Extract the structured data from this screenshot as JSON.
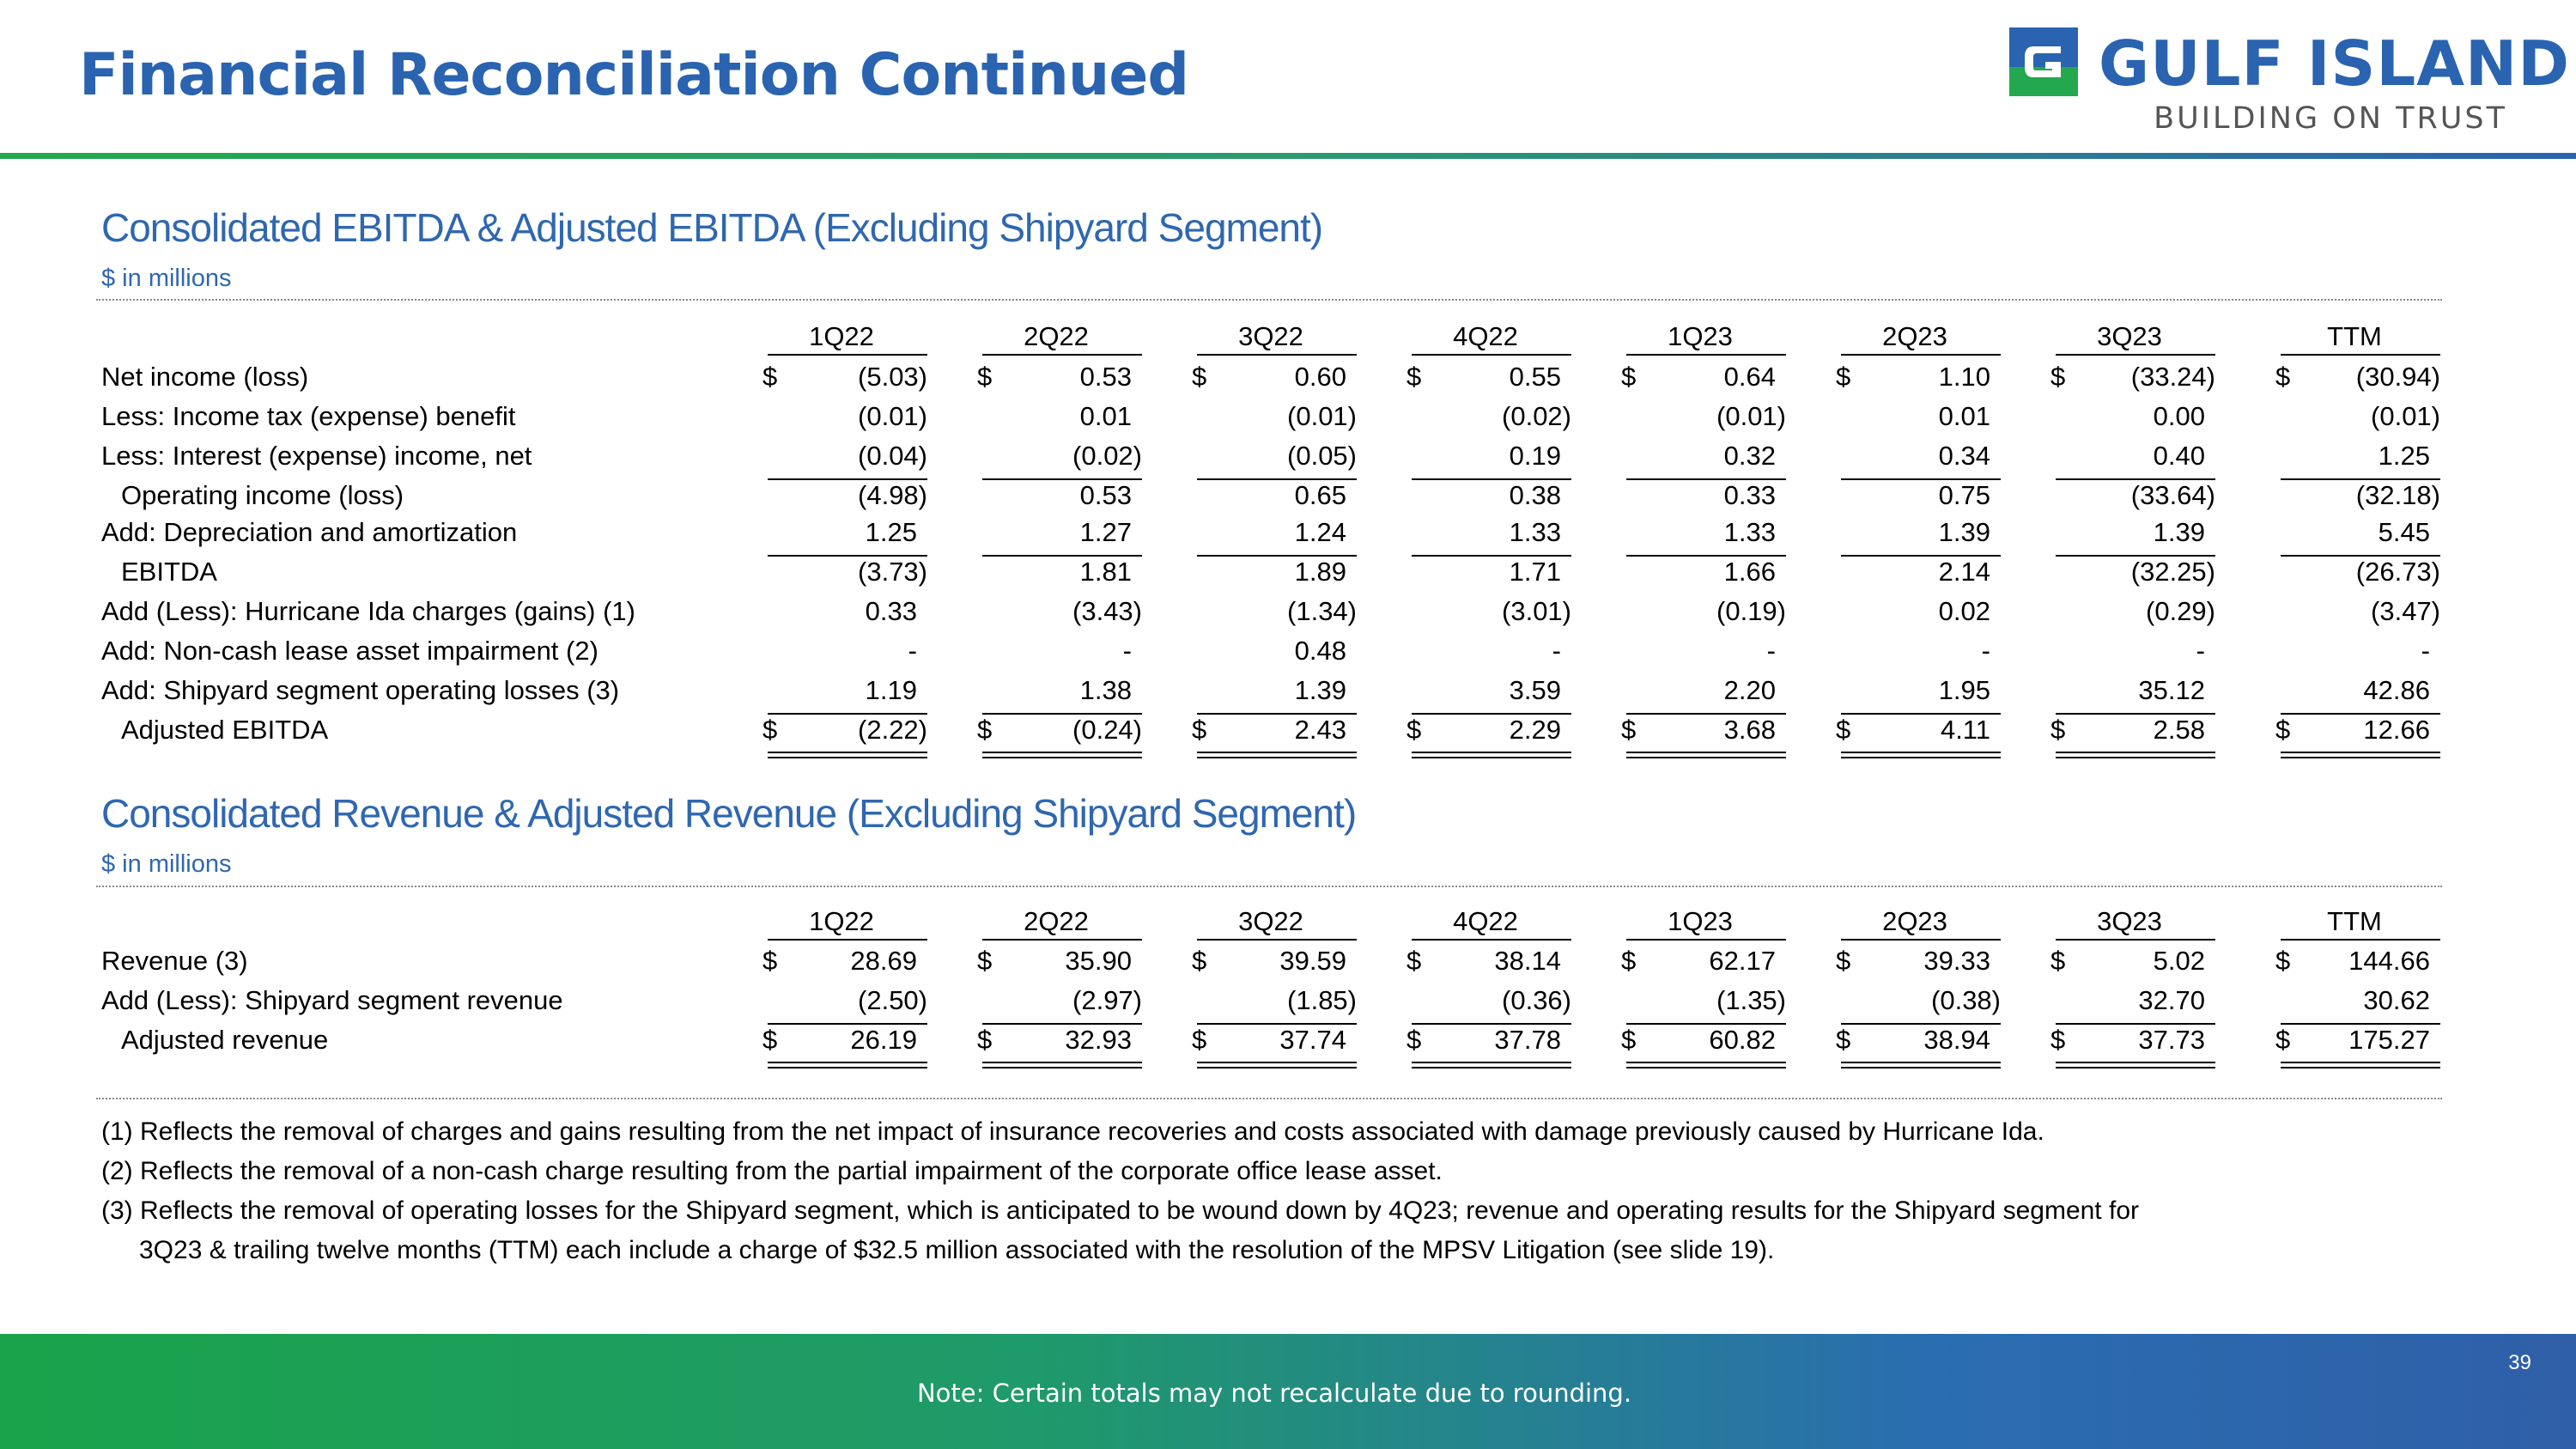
{
  "header": {
    "title": "Financial Reconciliation Continued",
    "logo_name": "GULF ISLAND",
    "logo_tagline": "BUILDING ON TRUST",
    "logo_icon": "gulf-island-g-icon",
    "colors": {
      "title_blue": "#2a63b0",
      "brand_green": "#23a84f",
      "section_blue": "#2f67b0"
    }
  },
  "ebitda": {
    "title": "Consolidated EBITDA & Adjusted EBITDA (Excluding Shipyard Segment)",
    "unit": "$ in millions",
    "columns": [
      "1Q22",
      "2Q22",
      "3Q22",
      "4Q22",
      "1Q23",
      "2Q23",
      "3Q23",
      "TTM"
    ],
    "rows": [
      {
        "label": "Net income (loss)",
        "values": [
          "(5.03)",
          "0.53",
          "0.60",
          "0.55",
          "0.64",
          "1.10",
          "(33.24)",
          "(30.94)"
        ],
        "dollar": true
      },
      {
        "label": "Less: Income tax (expense) benefit",
        "values": [
          "(0.01)",
          "0.01",
          "(0.01)",
          "(0.02)",
          "(0.01)",
          "0.01",
          "0.00",
          "(0.01)"
        ]
      },
      {
        "label": "Less: Interest (expense) income, net",
        "values": [
          "(0.04)",
          "(0.02)",
          "(0.05)",
          "0.19",
          "0.32",
          "0.34",
          "0.40",
          "1.25"
        ]
      },
      {
        "label": "Operating income (loss)",
        "values": [
          "(4.98)",
          "0.53",
          "0.65",
          "0.38",
          "0.33",
          "0.75",
          "(33.64)",
          "(32.18)"
        ],
        "indent": true
      },
      {
        "label": "Add: Depreciation and amortization",
        "values": [
          "1.25",
          "1.27",
          "1.24",
          "1.33",
          "1.33",
          "1.39",
          "1.39",
          "5.45"
        ]
      },
      {
        "label": "EBITDA",
        "values": [
          "(3.73)",
          "1.81",
          "1.89",
          "1.71",
          "1.66",
          "2.14",
          "(32.25)",
          "(26.73)"
        ],
        "indent": true
      },
      {
        "label": "Add (Less): Hurricane Ida charges (gains) (1)",
        "values": [
          "0.33",
          "(3.43)",
          "(1.34)",
          "(3.01)",
          "(0.19)",
          "0.02",
          "(0.29)",
          "(3.47)"
        ]
      },
      {
        "label": "Add: Non-cash lease asset impairment (2)",
        "values": [
          "-",
          "-",
          "0.48",
          "-",
          "-",
          "-",
          "-",
          "-"
        ]
      },
      {
        "label": "Add: Shipyard segment operating losses (3)",
        "values": [
          "1.19",
          "1.38",
          "1.39",
          "3.59",
          "2.20",
          "1.95",
          "35.12",
          "42.86"
        ]
      },
      {
        "label": "Adjusted EBITDA",
        "values": [
          "(2.22)",
          "(0.24)",
          "2.43",
          "2.29",
          "3.68",
          "4.11",
          "2.58",
          "12.66"
        ],
        "indent": true,
        "dollar": true
      }
    ]
  },
  "revenue": {
    "title": "Consolidated Revenue & Adjusted Revenue (Excluding Shipyard Segment)",
    "unit": "$ in millions",
    "columns": [
      "1Q22",
      "2Q22",
      "3Q22",
      "4Q22",
      "1Q23",
      "2Q23",
      "3Q23",
      "TTM"
    ],
    "rows": [
      {
        "label": "Revenue (3)",
        "values": [
          "28.69",
          "35.90",
          "39.59",
          "38.14",
          "62.17",
          "39.33",
          "5.02",
          "144.66"
        ],
        "dollar": true
      },
      {
        "label": "Add (Less): Shipyard segment revenue",
        "values": [
          "(2.50)",
          "(2.97)",
          "(1.85)",
          "(0.36)",
          "(1.35)",
          "(0.38)",
          "32.70",
          "30.62"
        ]
      },
      {
        "label": "Adjusted revenue",
        "values": [
          "26.19",
          "32.93",
          "37.74",
          "37.78",
          "60.82",
          "38.94",
          "37.73",
          "175.27"
        ],
        "indent": true,
        "dollar": true
      }
    ]
  },
  "footnotes": [
    "(1) Reflects the removal of charges and gains resulting from the net impact of insurance recoveries and costs associated with damage previously caused by Hurricane Ida.",
    "(2) Reflects the removal of a non-cash charge resulting from the partial impairment of the corporate office lease asset.",
    "(3) Reflects the removal of operating losses for the Shipyard segment, which is anticipated to be wound down by 4Q23; revenue and operating results for the Shipyard segment for",
    "3Q23 & trailing twelve months (TTM) each include a charge of $32.5 million associated with the resolution of the MPSV Litigation (see slide 19)."
  ],
  "footer": {
    "note": "Note: Certain totals may not recalculate due to rounding.",
    "page_number": "39"
  }
}
